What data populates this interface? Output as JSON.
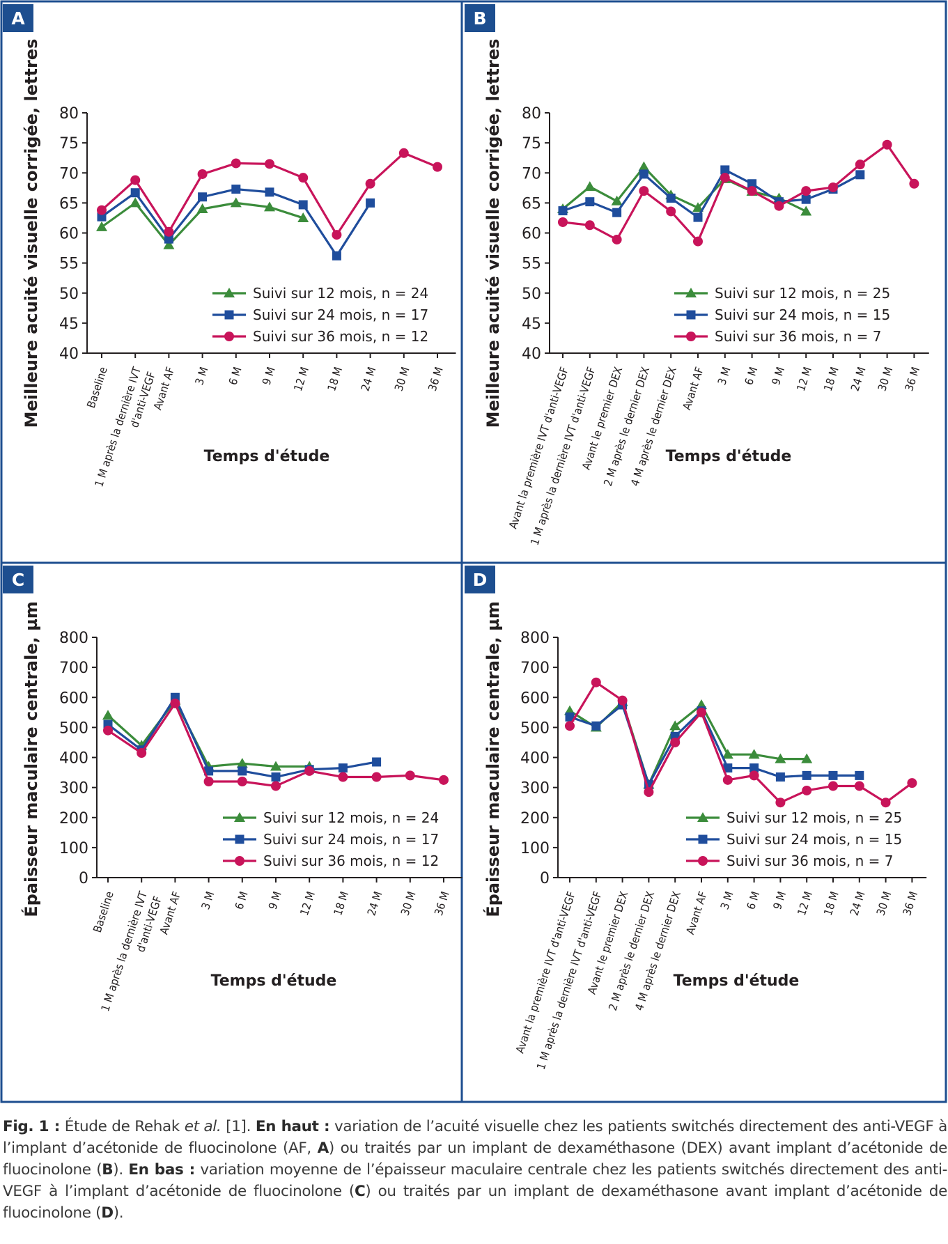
{
  "figure": {
    "border_color": "#1d4e8f",
    "series_colors": [
      "#3b8c3b",
      "#1f4d9c",
      "#c8145a"
    ],
    "series_markers": [
      "triangle",
      "square",
      "circle"
    ]
  },
  "panels": [
    {
      "letter": "A",
      "ylabel": "Meilleure acuité visuelle corrigée, lettres",
      "xlabel": "Temps d'étude"
    },
    {
      "letter": "B",
      "ylabel": "Meilleure acuité visuelle corrigée, lettres",
      "xlabel": "Temps d'étude"
    },
    {
      "letter": "C",
      "ylabel": "Épaisseur maculaire centrale, µm",
      "xlabel": "Temps d'étude"
    },
    {
      "letter": "D",
      "ylabel": "Épaisseur maculaire centrale, µm",
      "xlabel": "Temps d'étude"
    }
  ],
  "chart_data": [
    {
      "type": "line",
      "panel": "A",
      "xlabel": "Temps d'étude",
      "ylabel": "Meilleure acuité visuelle corrigée, lettres",
      "ylim": [
        40,
        80
      ],
      "yticks": [
        40,
        45,
        50,
        55,
        60,
        65,
        70,
        75,
        80
      ],
      "categories": [
        "Baseline",
        "1 M après la dernière IVT d'anti-VEGF",
        "Avant AF",
        "3 M",
        "6 M",
        "9 M",
        "12 M",
        "18 M",
        "24 M",
        "30 M",
        "36 M"
      ],
      "legend_position": "bottom-right",
      "grid": false,
      "series": [
        {
          "name": "Suivi sur 12 mois, n = 24",
          "values": [
            61,
            65,
            58,
            64,
            65,
            64.3,
            62.5,
            null,
            null,
            null,
            null
          ]
        },
        {
          "name": "Suivi sur 24 mois, n = 17",
          "values": [
            62.7,
            66.7,
            59,
            66,
            67.3,
            66.8,
            64.7,
            56.2,
            65,
            null,
            null
          ]
        },
        {
          "name": "Suivi sur 36 mois, n = 12",
          "values": [
            63.8,
            68.8,
            60.2,
            69.8,
            71.6,
            71.5,
            69.2,
            59.7,
            68.2,
            73.3,
            71
          ]
        }
      ]
    },
    {
      "type": "line",
      "panel": "B",
      "xlabel": "Temps d'étude",
      "ylabel": "Meilleure acuité visuelle corrigée, lettres",
      "ylim": [
        40,
        80
      ],
      "yticks": [
        40,
        45,
        50,
        55,
        60,
        65,
        70,
        75,
        80
      ],
      "categories": [
        "Avant la première IVT d'anti-VEGF",
        "1 M après la dernière IVT d'anti-VEGF",
        "Avant le premier DEX",
        "2 M après le dernier DEX",
        "4 M après le dernier DEX",
        "Avant AF",
        "3 M",
        "6 M",
        "9 M",
        "12 M",
        "18 M",
        "24 M",
        "30 M",
        "36 M"
      ],
      "legend_position": "bottom-right",
      "grid": false,
      "series": [
        {
          "name": "Suivi sur 12 mois, n = 25",
          "values": [
            64,
            67.7,
            65.3,
            71,
            66.3,
            64.2,
            69,
            66.9,
            65.8,
            63.6,
            null,
            null,
            null,
            null
          ]
        },
        {
          "name": "Suivi sur 24 mois, n = 15",
          "values": [
            63.7,
            65.2,
            63.4,
            69.8,
            65.8,
            62.6,
            70.5,
            68.2,
            65.2,
            65.6,
            67.3,
            69.7,
            null,
            null
          ]
        },
        {
          "name": "Suivi sur 36 mois, n = 7",
          "values": [
            61.8,
            61.3,
            58.9,
            67,
            63.6,
            58.6,
            69.2,
            67,
            64.5,
            67,
            67.6,
            71.4,
            74.7,
            68.2
          ]
        }
      ]
    },
    {
      "type": "line",
      "panel": "C",
      "xlabel": "Temps d'étude",
      "ylabel": "Épaisseur maculaire centrale, µm",
      "ylim": [
        0,
        800
      ],
      "yticks": [
        0,
        100,
        200,
        300,
        400,
        500,
        600,
        700,
        800
      ],
      "categories": [
        "Baseline",
        "1 M après la dernière IVT d'anti-VEGF",
        "Avant AF",
        "3 M",
        "6 M",
        "9 M",
        "12 M",
        "18 M",
        "24 M",
        "30 M",
        "36 M"
      ],
      "legend_position": "bottom-right",
      "grid": false,
      "series": [
        {
          "name": "Suivi sur 12 mois, n = 24",
          "values": [
            540,
            440,
            590,
            370,
            380,
            370,
            370,
            null,
            null,
            null,
            null
          ]
        },
        {
          "name": "Suivi sur 24 mois, n = 17",
          "values": [
            510,
            425,
            600,
            355,
            355,
            335,
            360,
            365,
            385,
            null,
            null
          ]
        },
        {
          "name": "Suivi sur 36 mois, n = 12",
          "values": [
            490,
            415,
            580,
            320,
            320,
            305,
            355,
            335,
            335,
            340,
            325
          ]
        }
      ]
    },
    {
      "type": "line",
      "panel": "D",
      "xlabel": "Temps d'étude",
      "ylabel": "Épaisseur maculaire centrale, µm",
      "ylim": [
        0,
        800
      ],
      "yticks": [
        0,
        100,
        200,
        300,
        400,
        500,
        600,
        700,
        800
      ],
      "categories": [
        "Avant la première IVT d'anti-VEGF",
        "1 M après la dernière IVT d'anti-VEGF",
        "Avant le premier DEX",
        "2 M après le dernier DEX",
        "4 M après le dernier DEX",
        "Avant AF",
        "3 M",
        "6 M",
        "9 M",
        "12 M",
        "18 M",
        "24 M",
        "30 M",
        "36 M"
      ],
      "legend_position": "bottom-right",
      "grid": false,
      "series": [
        {
          "name": "Suivi sur 12 mois, n = 25",
          "values": [
            555,
            500,
            585,
            310,
            505,
            575,
            410,
            410,
            395,
            395,
            null,
            null,
            null,
            null
          ]
        },
        {
          "name": "Suivi sur 24 mois, n = 15",
          "values": [
            535,
            505,
            575,
            310,
            470,
            555,
            365,
            365,
            335,
            340,
            340,
            340,
            null,
            null
          ]
        },
        {
          "name": "Suivi sur 36 mois, n = 7",
          "values": [
            505,
            650,
            590,
            285,
            450,
            550,
            325,
            340,
            250,
            290,
            305,
            305,
            250,
            315
          ]
        }
      ]
    }
  ],
  "caption": {
    "fig_label": "Fig. 1 :",
    "text1": " Étude de Rehak ",
    "et_al": "et al.",
    "text2": " [1]. ",
    "bold1": "En haut :",
    "text3": " variation de l’acuité visuelle chez les patients switchés directement des anti-VEGF à l’implant d’acétonide de fluocinolone (AF, ",
    "letterA": "A",
    "text4": ") ou traités par un implant de dexaméthasone (DEX) avant implant d’acétonide de fluocinolone (",
    "letterB": "B",
    "text5": "). ",
    "bold2": "En bas :",
    "text6": " variation moyenne de l’épaisseur maculaire centrale chez les patients switchés directement des anti-VEGF à l’implant d’acétonide de fluocinolone (",
    "letterC": "C",
    "text7": ") ou traités par un implant de dexaméthasone avant implant d’acétonide de fluocinolone (",
    "letterD": "D",
    "text8": ")."
  }
}
